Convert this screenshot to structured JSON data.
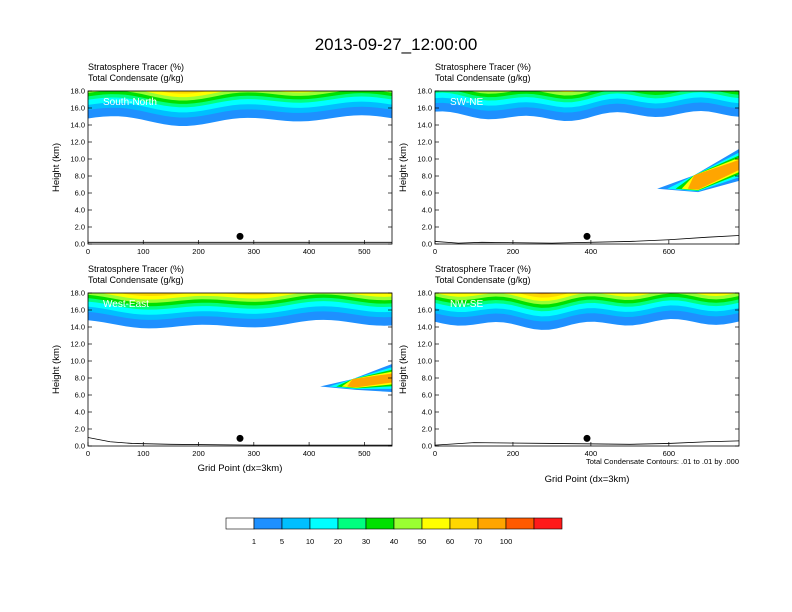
{
  "figure": {
    "title": "2013-09-27_12:00:00",
    "var1": "Stratosphere Tracer",
    "unit1": "(%)",
    "var2": "Total Condensate",
    "unit2": "(g/kg)",
    "ylabel": "Height (km)",
    "xlabel": "Grid Point (dx=3km)",
    "contour_note": "Total Condensate Contours: .01 to .01 by .000"
  },
  "colorbar": {
    "colors": [
      "#ffffff",
      "#1e90ff",
      "#00bfff",
      "#00ffff",
      "#00ff7f",
      "#00e000",
      "#9aff32",
      "#ffff00",
      "#ffd700",
      "#ffa500",
      "#ff5a00",
      "#ff1a1a"
    ],
    "labels": [
      "1",
      "5",
      "10",
      "20",
      "30",
      "40",
      "50",
      "60",
      "70",
      "100"
    ]
  },
  "chart_data": [
    {
      "type": "contour-fill",
      "panel": "South-North",
      "ylim": [
        0,
        18
      ],
      "yticks": [
        "0.0",
        "2.0",
        "4.0",
        "6.0",
        "8.0",
        "10.0",
        "12.0",
        "14.0",
        "16.0",
        "18.0"
      ],
      "xlim": [
        0,
        550
      ],
      "xticks": [
        0,
        100,
        200,
        300,
        400,
        500
      ],
      "xtick_labels": [
        "0",
        "100",
        "200",
        "300",
        "400",
        "500"
      ],
      "marker_x": 275,
      "marker_y": 0.9,
      "base_km": 14.8,
      "tongue": null,
      "terrain_x": [
        0,
        550
      ],
      "terrain_y": [
        0.2,
        0.2
      ]
    },
    {
      "type": "contour-fill",
      "panel": "SW-NE",
      "ylim": [
        0,
        18
      ],
      "yticks": [
        "0.0",
        "2.0",
        "4.0",
        "6.0",
        "8.0",
        "10.0",
        "12.0",
        "14.0",
        "16.0",
        "18.0"
      ],
      "xlim": [
        0,
        780
      ],
      "xticks": [
        0,
        200,
        400,
        600
      ],
      "xtick_labels": [
        "0",
        "200",
        "400",
        "600"
      ],
      "marker_x": 390,
      "marker_y": 0.9,
      "base_km": 15.3,
      "tongue": {
        "x_tip": 570,
        "y_tip": 6.5,
        "x_root": 780,
        "y_root": 11.0,
        "y_low": 7.6
      },
      "terrain_x": [
        0,
        60,
        120,
        300,
        500,
        600,
        700,
        780
      ],
      "terrain_y": [
        0.3,
        0.1,
        0.2,
        0.1,
        0.3,
        0.5,
        0.8,
        1.0
      ]
    },
    {
      "type": "contour-fill",
      "panel": "West-East",
      "ylim": [
        0,
        18
      ],
      "yticks": [
        "0.0",
        "2.0",
        "4.0",
        "6.0",
        "8.0",
        "10.0",
        "12.0",
        "14.0",
        "16.0",
        "18.0"
      ],
      "xlim": [
        0,
        550
      ],
      "xticks": [
        0,
        100,
        200,
        300,
        400,
        500
      ],
      "xtick_labels": [
        "0",
        "100",
        "200",
        "300",
        "400",
        "500"
      ],
      "marker_x": 275,
      "marker_y": 0.9,
      "base_km": 14.5,
      "tongue": {
        "x_tip": 420,
        "y_tip": 7.0,
        "x_root": 550,
        "y_root": 9.5,
        "y_low": 6.5
      },
      "terrain_x": [
        0,
        40,
        80,
        150,
        300,
        550
      ],
      "terrain_y": [
        1.0,
        0.5,
        0.3,
        0.2,
        0.1,
        0.1
      ]
    },
    {
      "type": "contour-fill",
      "panel": "NW-SE",
      "ylim": [
        0,
        18
      ],
      "yticks": [
        "0.0",
        "2.0",
        "4.0",
        "6.0",
        "8.0",
        "10.0",
        "12.0",
        "14.0",
        "16.0",
        "18.0"
      ],
      "xlim": [
        0,
        780
      ],
      "xticks": [
        0,
        200,
        400,
        600
      ],
      "xtick_labels": [
        "0",
        "200",
        "400",
        "600"
      ],
      "marker_x": 390,
      "marker_y": 0.9,
      "base_km": 14.6,
      "tongue": null,
      "terrain_x": [
        0,
        100,
        300,
        500,
        600,
        700,
        780
      ],
      "terrain_y": [
        0.1,
        0.4,
        0.3,
        0.2,
        0.3,
        0.5,
        0.6
      ]
    }
  ]
}
